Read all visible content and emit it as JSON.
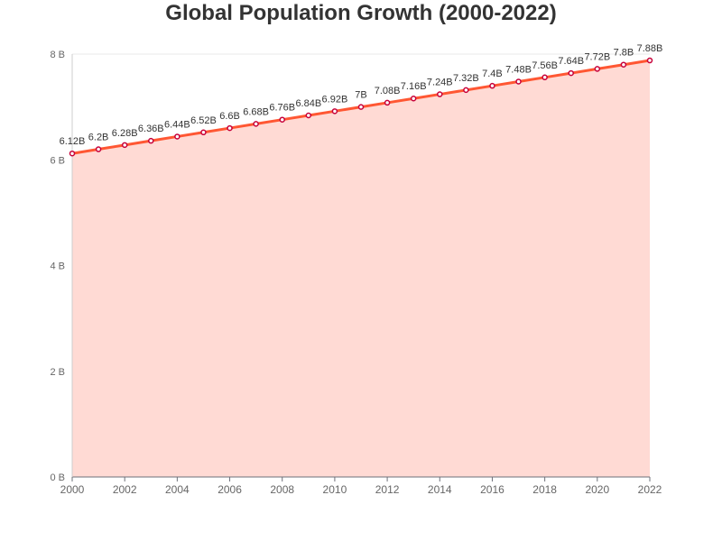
{
  "chart_data": {
    "type": "area",
    "title": "Global Population Growth (2000-2022)",
    "xlabel": "",
    "ylabel": "",
    "x": [
      2000,
      2001,
      2002,
      2003,
      2004,
      2005,
      2006,
      2007,
      2008,
      2009,
      2010,
      2011,
      2012,
      2013,
      2014,
      2015,
      2016,
      2017,
      2018,
      2019,
      2020,
      2021,
      2022
    ],
    "x_tick_labels": [
      "2000",
      "2002",
      "2004",
      "2006",
      "2008",
      "2010",
      "2012",
      "2014",
      "2016",
      "2018",
      "2020",
      "2022"
    ],
    "y_tick_labels": [
      "0 B",
      "2 B",
      "4 B",
      "6 B",
      "8 B"
    ],
    "y_ticks": [
      0,
      2,
      4,
      6,
      8
    ],
    "ylim": [
      0,
      8
    ],
    "series": [
      {
        "values": [
          6.12,
          6.2,
          6.28,
          6.36,
          6.44,
          6.52,
          6.6,
          6.68,
          6.76,
          6.84,
          6.92,
          7.0,
          7.08,
          7.16,
          7.24,
          7.32,
          7.4,
          7.48,
          7.56,
          7.64,
          7.72,
          7.8,
          7.88
        ],
        "data_labels": [
          "6.12B",
          "6.2B",
          "6.28B",
          "6.36B",
          "6.44B",
          "6.52B",
          "6.6B",
          "6.68B",
          "6.76B",
          "6.84B",
          "6.92B",
          "7B",
          "7.08B",
          "7.16B",
          "7.24B",
          "7.32B",
          "7.4B",
          "7.48B",
          "7.56B",
          "7.64B",
          "7.72B",
          "7.8B",
          "7.88B"
        ]
      }
    ],
    "grid": true,
    "legend": "none",
    "colors": {
      "line": "#ff5733",
      "area": "#ffdad4",
      "marker_stroke": "#c70039",
      "marker_fill": "#ffffff",
      "grid": "#e8e8e8",
      "axis": "#6e7079"
    }
  }
}
